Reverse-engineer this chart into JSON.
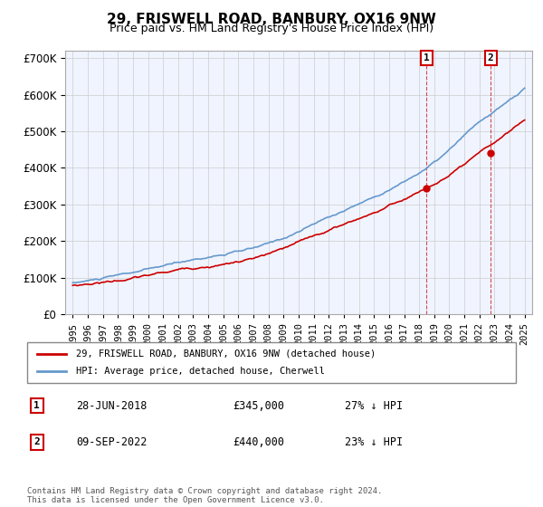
{
  "title": "29, FRISWELL ROAD, BANBURY, OX16 9NW",
  "subtitle": "Price paid vs. HM Land Registry's House Price Index (HPI)",
  "ylabel": "",
  "ylim": [
    0,
    720000
  ],
  "yticks": [
    0,
    100000,
    200000,
    300000,
    400000,
    500000,
    600000,
    700000
  ],
  "ytick_labels": [
    "£0",
    "£100K",
    "£200K",
    "£300K",
    "£400K",
    "£500K",
    "£600K",
    "£700K"
  ],
  "hpi_color": "#6699cc",
  "price_color": "#cc0000",
  "marker1_date": "28-JUN-2018",
  "marker1_price": 345000,
  "marker1_hpi_pct": "27%",
  "marker2_date": "09-SEP-2022",
  "marker2_price": 440000,
  "marker2_hpi_pct": "23%",
  "footer": "Contains HM Land Registry data © Crown copyright and database right 2024.\nThis data is licensed under the Open Government Licence v3.0.",
  "legend_label1": "29, FRISWELL ROAD, BANBURY, OX16 9NW (detached house)",
  "legend_label2": "HPI: Average price, detached house, Cherwell",
  "background_color": "#f0f4ff",
  "plot_background": "#f0f4ff"
}
